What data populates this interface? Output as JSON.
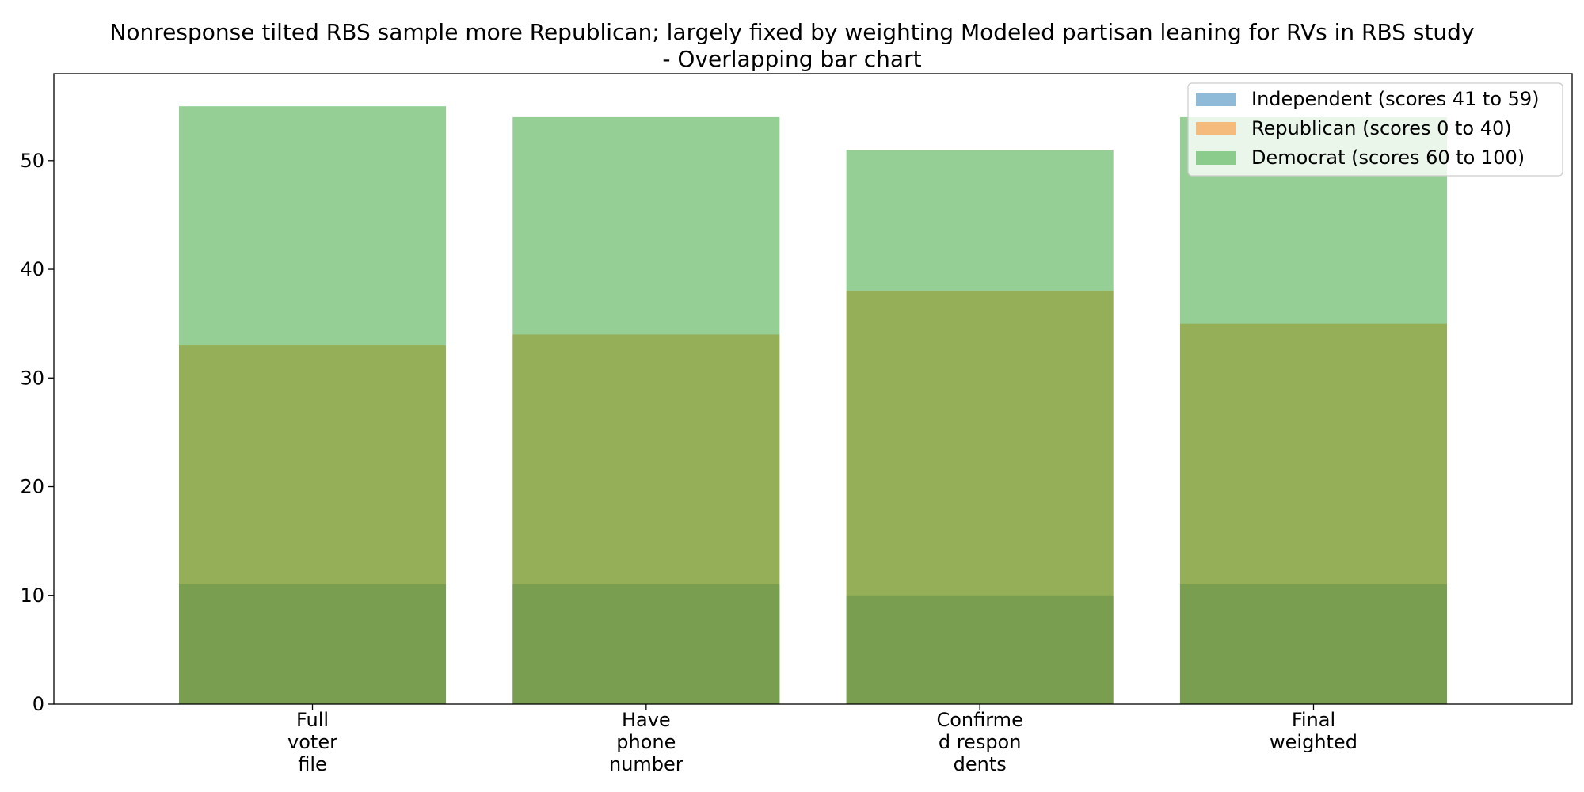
{
  "chart_data": {
    "type": "bar",
    "title": "Nonresponse tilted RBS sample more Republican; largely fixed by weighting Modeled partisan leaning for RVs in RBS study - Overlapping bar chart",
    "title_lines": [
      "Nonresponse tilted RBS sample more Republican; largely fixed by weighting Modeled partisan leaning for RVs in RBS study",
      "- Overlapping bar chart"
    ],
    "xlabel": "",
    "ylabel": "",
    "categories": [
      "Full voter file",
      "Have phone number",
      "Confirmed respondents",
      "Final weighted"
    ],
    "category_label_lines": [
      [
        "Full",
        "voter",
        "file"
      ],
      [
        "Have",
        "phone",
        "number"
      ],
      [
        "Confirme",
        "d respon",
        "dents"
      ],
      [
        "Final",
        "weighted"
      ]
    ],
    "series": [
      {
        "name": "Independent (scores 41 to 59)",
        "color": "#1f77b4",
        "values": [
          11,
          11,
          10,
          11
        ]
      },
      {
        "name": "Republican (scores 0 to 40)",
        "color": "#ff7f0e",
        "values": [
          33,
          34,
          38,
          35
        ]
      },
      {
        "name": "Democrat (scores 60 to 100)",
        "color": "#2ca02c",
        "values": [
          55,
          54,
          51,
          54
        ]
      }
    ],
    "bar_opacity": 0.5,
    "ylim": [
      0,
      58
    ],
    "yticks": [
      0,
      10,
      20,
      30,
      40,
      50
    ],
    "grid": false,
    "legend_position": "top-right"
  }
}
